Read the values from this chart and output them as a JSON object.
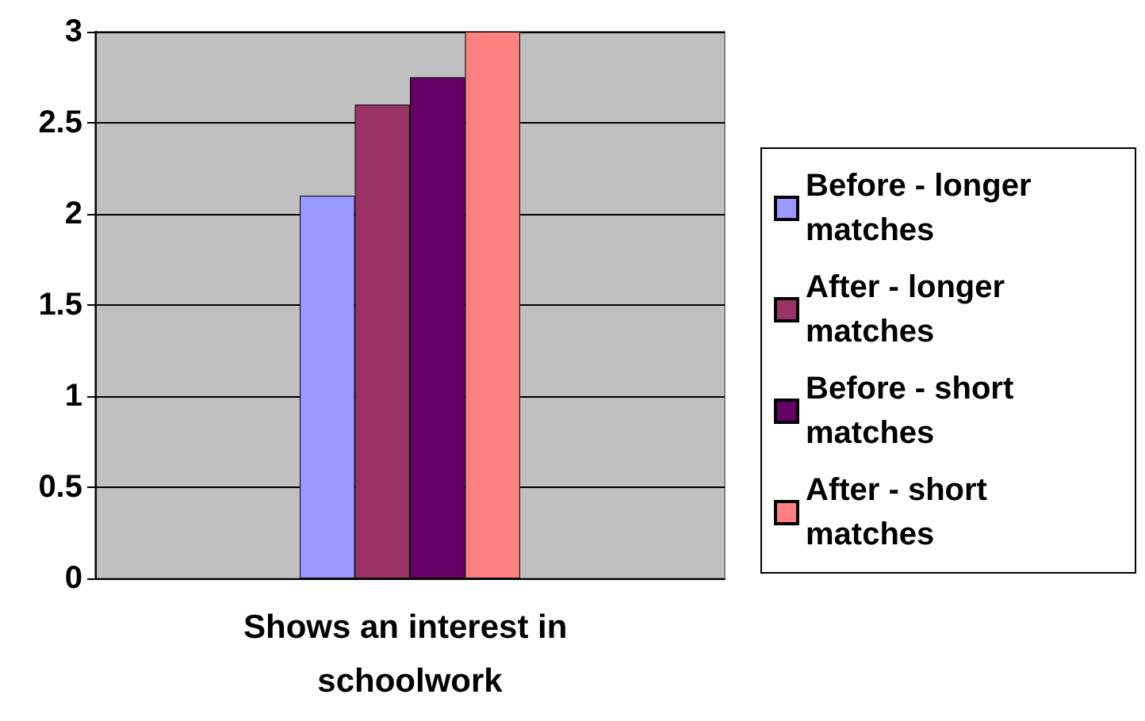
{
  "chart_data": {
    "type": "bar",
    "categories": [
      "Shows an interest in schoolwork"
    ],
    "series": [
      {
        "name": "Before - longer matches",
        "color": "#9999ff",
        "values": [
          2.1
        ]
      },
      {
        "name": "After - longer matches",
        "color": "#993366",
        "values": [
          2.6
        ]
      },
      {
        "name": "Before - short matches",
        "color": "#660066",
        "values": [
          2.75
        ]
      },
      {
        "name": "After - short matches",
        "color": "#ff8080",
        "values": [
          3
        ]
      }
    ],
    "ylim": [
      0,
      3
    ],
    "yticks": [
      0,
      0.5,
      1,
      1.5,
      2,
      2.5,
      3
    ],
    "grid": "y",
    "legend": "right"
  }
}
